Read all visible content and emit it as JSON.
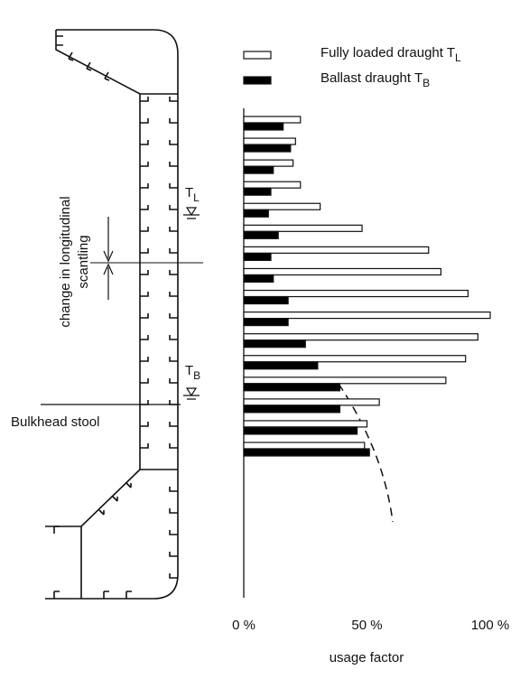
{
  "chart_data": {
    "type": "bar",
    "orientation": "horizontal",
    "x_label": "usage factor",
    "xlim": [
      0,
      100
    ],
    "xticks": [
      {
        "value": 0,
        "label": "0 %"
      },
      {
        "value": 50,
        "label": "50 %"
      },
      {
        "value": 100,
        "label": "100 %"
      }
    ],
    "series": [
      {
        "name": "Fully loaded draught T",
        "name_subscript": "L",
        "color": "#ffffff",
        "values": [
          23,
          21,
          20,
          23,
          31,
          48,
          75,
          80,
          91,
          100,
          95,
          90,
          82,
          55,
          50,
          49
        ]
      },
      {
        "name": "Ballast draught T",
        "name_subscript": "B",
        "color": "#000000",
        "values": [
          16,
          19,
          12,
          11,
          10,
          14,
          11,
          12,
          18,
          18,
          25,
          30,
          39,
          39,
          46,
          51
        ]
      }
    ],
    "annotations": {
      "scantling": [
        "change in longitudinal",
        "scantling"
      ],
      "stool": "Bulkhead stool",
      "draught_full": "T",
      "draught_full_sub": "L",
      "draught_ballast": "T",
      "draught_ballast_sub": "B"
    }
  }
}
